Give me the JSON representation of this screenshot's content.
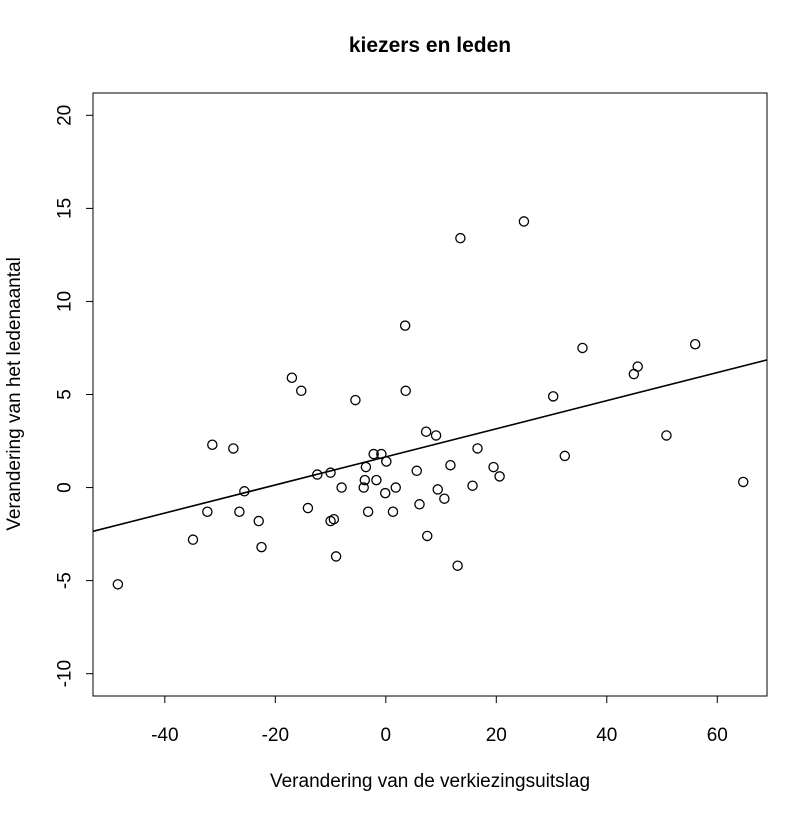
{
  "chart_data": {
    "type": "scatter",
    "title": "kiezers en leden",
    "xlabel": "Verandering van de verkiezingsuitslag",
    "ylabel": "Verandering van het ledenaantal",
    "xlim": [
      -53,
      69
    ],
    "ylim": [
      -11.2,
      21.2
    ],
    "xticks": [
      -40,
      -20,
      0,
      20,
      40,
      60
    ],
    "yticks": [
      -10,
      -5,
      0,
      5,
      10,
      15,
      20
    ],
    "grid": false,
    "legend": "none",
    "marker": "open-circle",
    "colors": {
      "points": "#000000",
      "line": "#000000",
      "background": "#ffffff"
    },
    "regression_line": {
      "intercept": 1.65,
      "slope": 0.0755
    },
    "points": [
      {
        "x": -48.5,
        "y": -5.2
      },
      {
        "x": -34.9,
        "y": -2.8
      },
      {
        "x": -32.3,
        "y": -1.3
      },
      {
        "x": -31.4,
        "y": 2.3
      },
      {
        "x": -27.6,
        "y": 2.1
      },
      {
        "x": -26.5,
        "y": -1.3
      },
      {
        "x": -25.6,
        "y": -0.2
      },
      {
        "x": -23.0,
        "y": -1.8
      },
      {
        "x": -22.5,
        "y": -3.2
      },
      {
        "x": -17.0,
        "y": 5.9
      },
      {
        "x": -15.3,
        "y": 5.2
      },
      {
        "x": -14.1,
        "y": -1.1
      },
      {
        "x": -12.4,
        "y": 0.7
      },
      {
        "x": -10.0,
        "y": 0.8
      },
      {
        "x": -10.0,
        "y": -1.8
      },
      {
        "x": -9.4,
        "y": -1.7
      },
      {
        "x": -9.0,
        "y": -3.7
      },
      {
        "x": -8.0,
        "y": 0.0
      },
      {
        "x": -5.5,
        "y": 4.7
      },
      {
        "x": -4.0,
        "y": 0.0
      },
      {
        "x": -3.8,
        "y": 0.4
      },
      {
        "x": -3.6,
        "y": 1.1
      },
      {
        "x": -3.2,
        "y": -1.3
      },
      {
        "x": -2.2,
        "y": 1.8
      },
      {
        "x": -1.7,
        "y": 0.4
      },
      {
        "x": -0.8,
        "y": 1.8
      },
      {
        "x": -0.1,
        "y": -0.3
      },
      {
        "x": 0.1,
        "y": 1.4
      },
      {
        "x": 1.3,
        "y": -1.3
      },
      {
        "x": 1.8,
        "y": 0.0
      },
      {
        "x": 3.5,
        "y": 8.7
      },
      {
        "x": 3.6,
        "y": 5.2
      },
      {
        "x": 5.6,
        "y": 0.9
      },
      {
        "x": 6.1,
        "y": -0.9
      },
      {
        "x": 7.3,
        "y": 3.0
      },
      {
        "x": 7.5,
        "y": -2.6
      },
      {
        "x": 9.1,
        "y": 2.8
      },
      {
        "x": 9.4,
        "y": -0.1
      },
      {
        "x": 10.6,
        "y": -0.6
      },
      {
        "x": 11.7,
        "y": 1.2
      },
      {
        "x": 13.0,
        "y": -4.2
      },
      {
        "x": 13.5,
        "y": 13.4
      },
      {
        "x": 15.7,
        "y": 0.1
      },
      {
        "x": 16.6,
        "y": 2.1
      },
      {
        "x": 19.5,
        "y": 1.1
      },
      {
        "x": 20.6,
        "y": 0.6
      },
      {
        "x": 25.0,
        "y": 14.3
      },
      {
        "x": 30.3,
        "y": 4.9
      },
      {
        "x": 32.4,
        "y": 1.7
      },
      {
        "x": 35.6,
        "y": 7.5
      },
      {
        "x": 44.9,
        "y": 6.1
      },
      {
        "x": 45.6,
        "y": 6.5
      },
      {
        "x": 50.8,
        "y": 2.8
      },
      {
        "x": 56.0,
        "y": 7.7
      },
      {
        "x": 64.7,
        "y": 0.3
      }
    ]
  }
}
